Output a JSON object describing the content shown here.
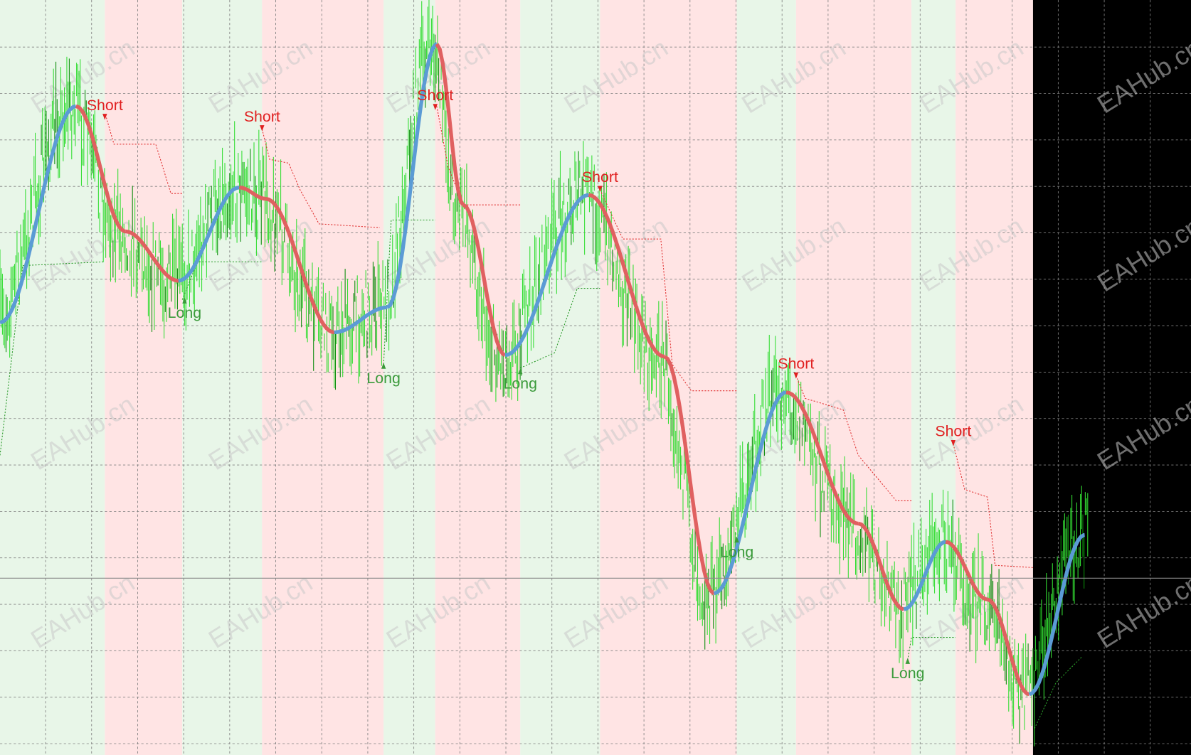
{
  "watermark": "EAHub.cn",
  "signals": [
    {
      "label": "Short"
    },
    {
      "label": "Short"
    },
    {
      "label": "Short"
    },
    {
      "label": "Short"
    },
    {
      "label": "Short"
    },
    {
      "label": "Short"
    },
    {
      "label": "Long"
    },
    {
      "label": "Long"
    },
    {
      "label": "Long"
    },
    {
      "label": "Long"
    },
    {
      "label": "Long"
    }
  ]
}
